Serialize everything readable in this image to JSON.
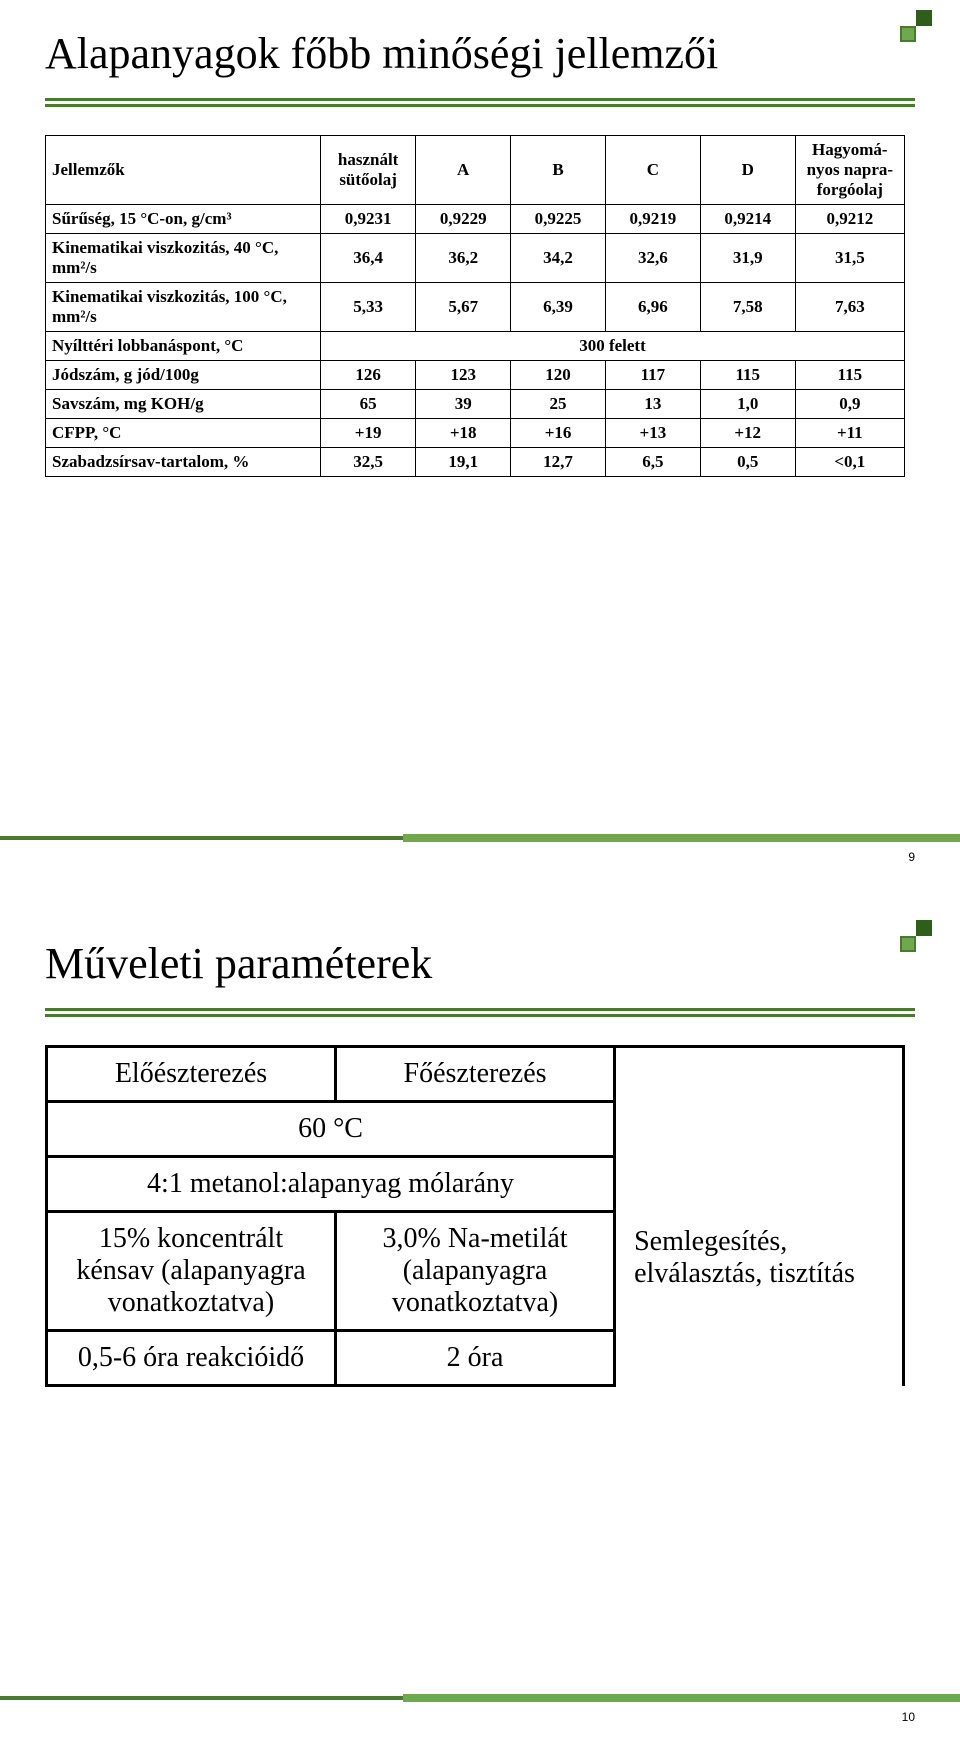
{
  "slide1": {
    "title": "Alapanyagok főbb minőségi jellemzői",
    "number": "9",
    "table": {
      "header": [
        "Jellemzők",
        "használt sütőolaj",
        "A",
        "B",
        "C",
        "D",
        "Hagyomá-nyos napra-forgóolaj"
      ],
      "rows": [
        {
          "label": "Sűrűség, 15 °C-on, g/cm³",
          "vals": [
            "0,9231",
            "0,9229",
            "0,9225",
            "0,9219",
            "0,9214",
            "0,9212"
          ]
        },
        {
          "label": "Kinematikai viszkozitás, 40 °C, mm²/s",
          "vals": [
            "36,4",
            "36,2",
            "34,2",
            "32,6",
            "31,9",
            "31,5"
          ]
        },
        {
          "label": "Kinematikai viszkozitás, 100 °C, mm²/s",
          "vals": [
            "5,33",
            "5,67",
            "6,39",
            "6,96",
            "7,58",
            "7,63"
          ]
        },
        {
          "label": "Nyílttéri lobbanáspont, °C",
          "span": "300 felett"
        },
        {
          "label": "Jódszám, g jód/100g",
          "vals": [
            "126",
            "123",
            "120",
            "117",
            "115",
            "115"
          ]
        },
        {
          "label": "Savszám, mg KOH/g",
          "vals": [
            "65",
            "39",
            "25",
            "13",
            "1,0",
            "0,9"
          ]
        },
        {
          "label": "CFPP, °C",
          "vals": [
            "+19",
            "+18",
            "+16",
            "+13",
            "+12",
            "+11"
          ]
        },
        {
          "label": "Szabadzsírsav-tartalom, %",
          "vals": [
            "32,5",
            "19,1",
            "12,7",
            "6,5",
            "0,5",
            "<0,1"
          ]
        }
      ]
    }
  },
  "slide2": {
    "title": "Műveleti paraméterek",
    "number": "10",
    "table": {
      "r1c1": "Előészterezés",
      "r1c2": "Főészterezés",
      "r2span": "60 °C",
      "r3span": "4:1 metanol:alapanyag mólarány",
      "r4c1": "15% koncentrált kénsav (alapanyagra vonatkoztatva)",
      "r4c2": "3,0% Na-metilát (alapanyagra vonatkoztatva)",
      "r4c3": "Semlegesítés, elválasztás, tisztítás",
      "r5c1": "0,5-6 óra reakcióidő",
      "r5c2": "2 óra"
    }
  },
  "colors": {
    "accent_dark": "#2f5e1a",
    "accent_mid": "#4a7a2f",
    "accent_light": "#6fa84f",
    "text": "#000000",
    "bg": "#ffffff",
    "table_border": "#000000"
  }
}
